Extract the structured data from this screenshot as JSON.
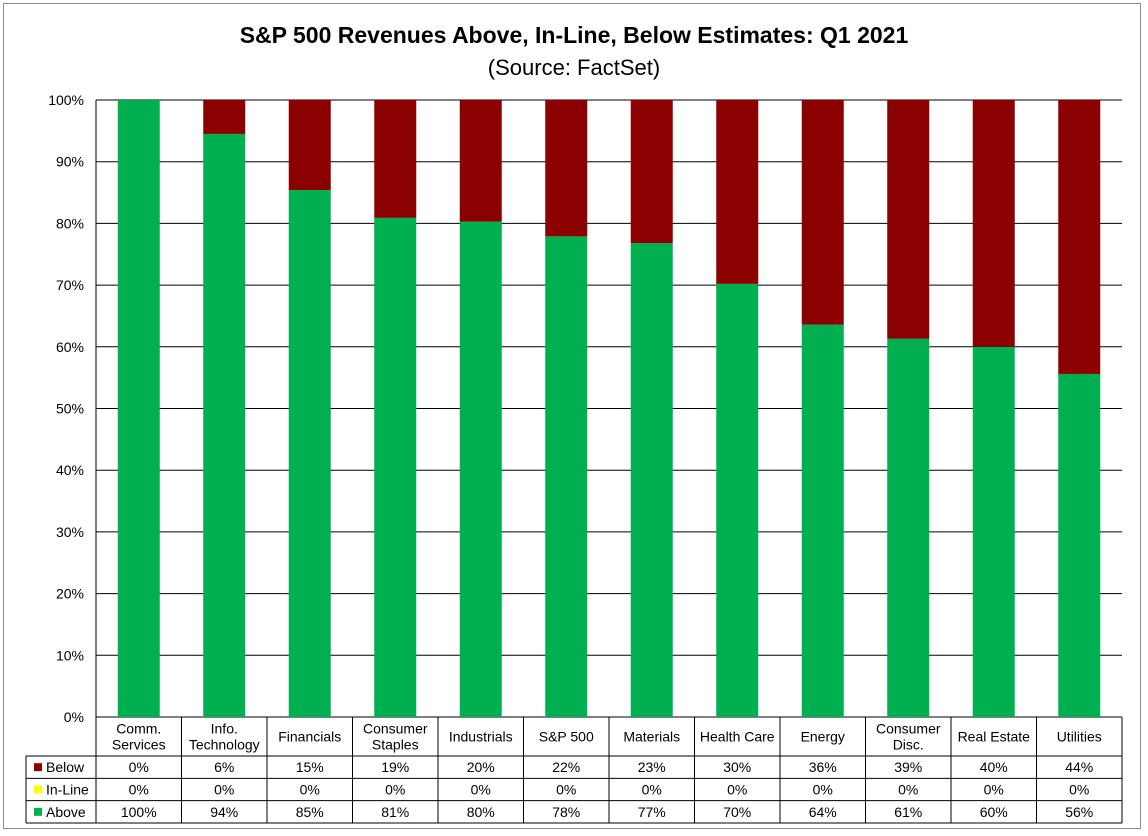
{
  "chart_data": {
    "type": "bar",
    "stacked": true,
    "title": "S&P 500 Revenues Above, In-Line, Below Estimates: Q1 2021",
    "subtitle": "(Source: FactSet)",
    "ylim": [
      0,
      100
    ],
    "yticks": [
      "0%",
      "10%",
      "20%",
      "30%",
      "40%",
      "50%",
      "60%",
      "70%",
      "80%",
      "90%",
      "100%"
    ],
    "grid": true,
    "legend": "data-table-left",
    "categories": [
      [
        "Comm.",
        "Services"
      ],
      [
        "Info.",
        "Technology"
      ],
      [
        "Financials"
      ],
      [
        "Consumer",
        "Staples"
      ],
      [
        "Industrials"
      ],
      [
        "S&P 500"
      ],
      [
        "Materials"
      ],
      [
        "Health Care"
      ],
      [
        "Energy"
      ],
      [
        "Consumer",
        "Disc."
      ],
      [
        "Real Estate"
      ],
      [
        "Utilities"
      ]
    ],
    "series": [
      {
        "name": "Below",
        "color": "#8b0000",
        "values": [
          0,
          5.5,
          14.6,
          19.1,
          19.7,
          22.1,
          23.2,
          29.8,
          36.4,
          38.7,
          40.0,
          44.4
        ],
        "labels": [
          "0%",
          "6%",
          "15%",
          "19%",
          "20%",
          "22%",
          "23%",
          "30%",
          "36%",
          "39%",
          "40%",
          "44%"
        ]
      },
      {
        "name": "In-Line",
        "color": "#ffff00",
        "values": [
          0,
          0,
          0,
          0,
          0,
          0,
          0,
          0,
          0,
          0,
          0,
          0
        ],
        "labels": [
          "0%",
          "0%",
          "0%",
          "0%",
          "0%",
          "0%",
          "0%",
          "0%",
          "0%",
          "0%",
          "0%",
          "0%"
        ]
      },
      {
        "name": "Above",
        "color": "#00b050",
        "values": [
          100,
          94.5,
          85.4,
          80.9,
          80.3,
          77.9,
          76.8,
          70.2,
          63.6,
          61.3,
          60.0,
          55.6
        ],
        "labels": [
          "100%",
          "94%",
          "85%",
          "81%",
          "80%",
          "78%",
          "77%",
          "70%",
          "64%",
          "61%",
          "60%",
          "56%"
        ]
      }
    ]
  }
}
